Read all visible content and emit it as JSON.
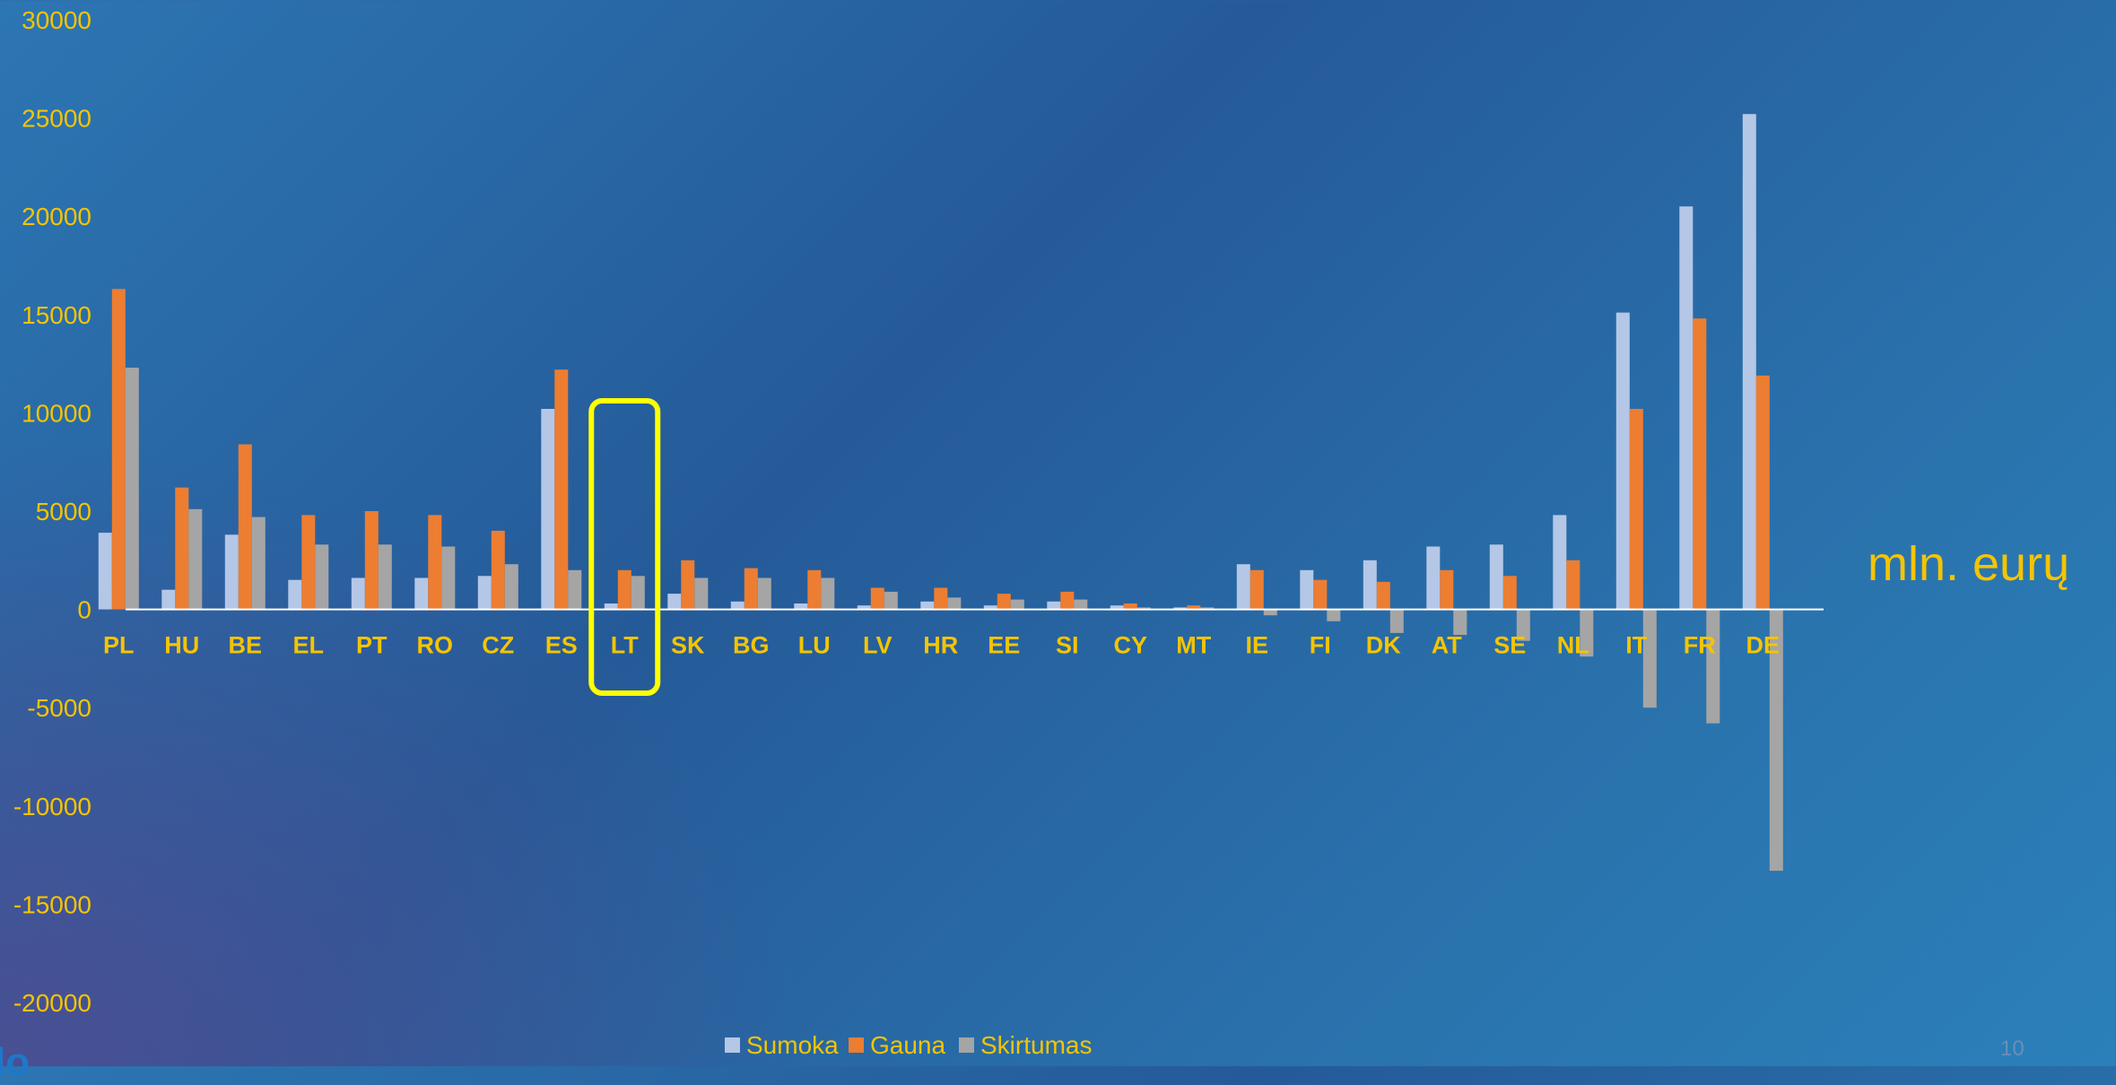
{
  "chart_data": {
    "type": "bar",
    "categories": [
      "PL",
      "HU",
      "BE",
      "EL",
      "PT",
      "RO",
      "CZ",
      "ES",
      "LT",
      "SK",
      "BG",
      "LU",
      "LV",
      "HR",
      "EE",
      "SI",
      "CY",
      "MT",
      "IE",
      "FI",
      "DK",
      "AT",
      "SE",
      "NL",
      "IT",
      "FR",
      "DE"
    ],
    "series": [
      {
        "name": "Sumoka",
        "color": "#b4c7e7",
        "values": [
          3900,
          1000,
          3800,
          1500,
          1600,
          1600,
          1700,
          10200,
          300,
          800,
          400,
          300,
          200,
          400,
          200,
          400,
          200,
          100,
          2300,
          2000,
          2500,
          3200,
          3300,
          4800,
          15100,
          20500,
          25200
        ]
      },
      {
        "name": "Gauna",
        "color": "#ed7d31",
        "values": [
          16300,
          6200,
          8400,
          4800,
          5000,
          4800,
          4000,
          12200,
          2000,
          2500,
          2100,
          2000,
          1100,
          1100,
          800,
          900,
          300,
          200,
          2000,
          1500,
          1400,
          2000,
          1700,
          2500,
          10200,
          14800,
          11900
        ]
      },
      {
        "name": "Skirtumas",
        "color": "#a5a5a5",
        "values": [
          12300,
          5100,
          4700,
          3300,
          3300,
          3200,
          2300,
          2000,
          1700,
          1600,
          1600,
          1600,
          900,
          600,
          500,
          500,
          100,
          100,
          -300,
          -600,
          -1200,
          -1300,
          -1600,
          -2400,
          -5000,
          -5800,
          -13300
        ]
      }
    ],
    "yticks": [
      30000,
      25000,
      20000,
      15000,
      10000,
      5000,
      0,
      -5000,
      -10000,
      -15000,
      -20000
    ],
    "ylim": [
      -20000,
      30000
    ],
    "highlight_category": "LT",
    "unit_label": "mln. eurų",
    "legend_position": "bottom",
    "colors": {
      "tick_label": "#f5c400",
      "category_label": "#f5c400",
      "highlight_box": "#ffff00",
      "axis_line": "#ffffff"
    }
  },
  "slide_number": "10",
  "corner_mark": "lo"
}
